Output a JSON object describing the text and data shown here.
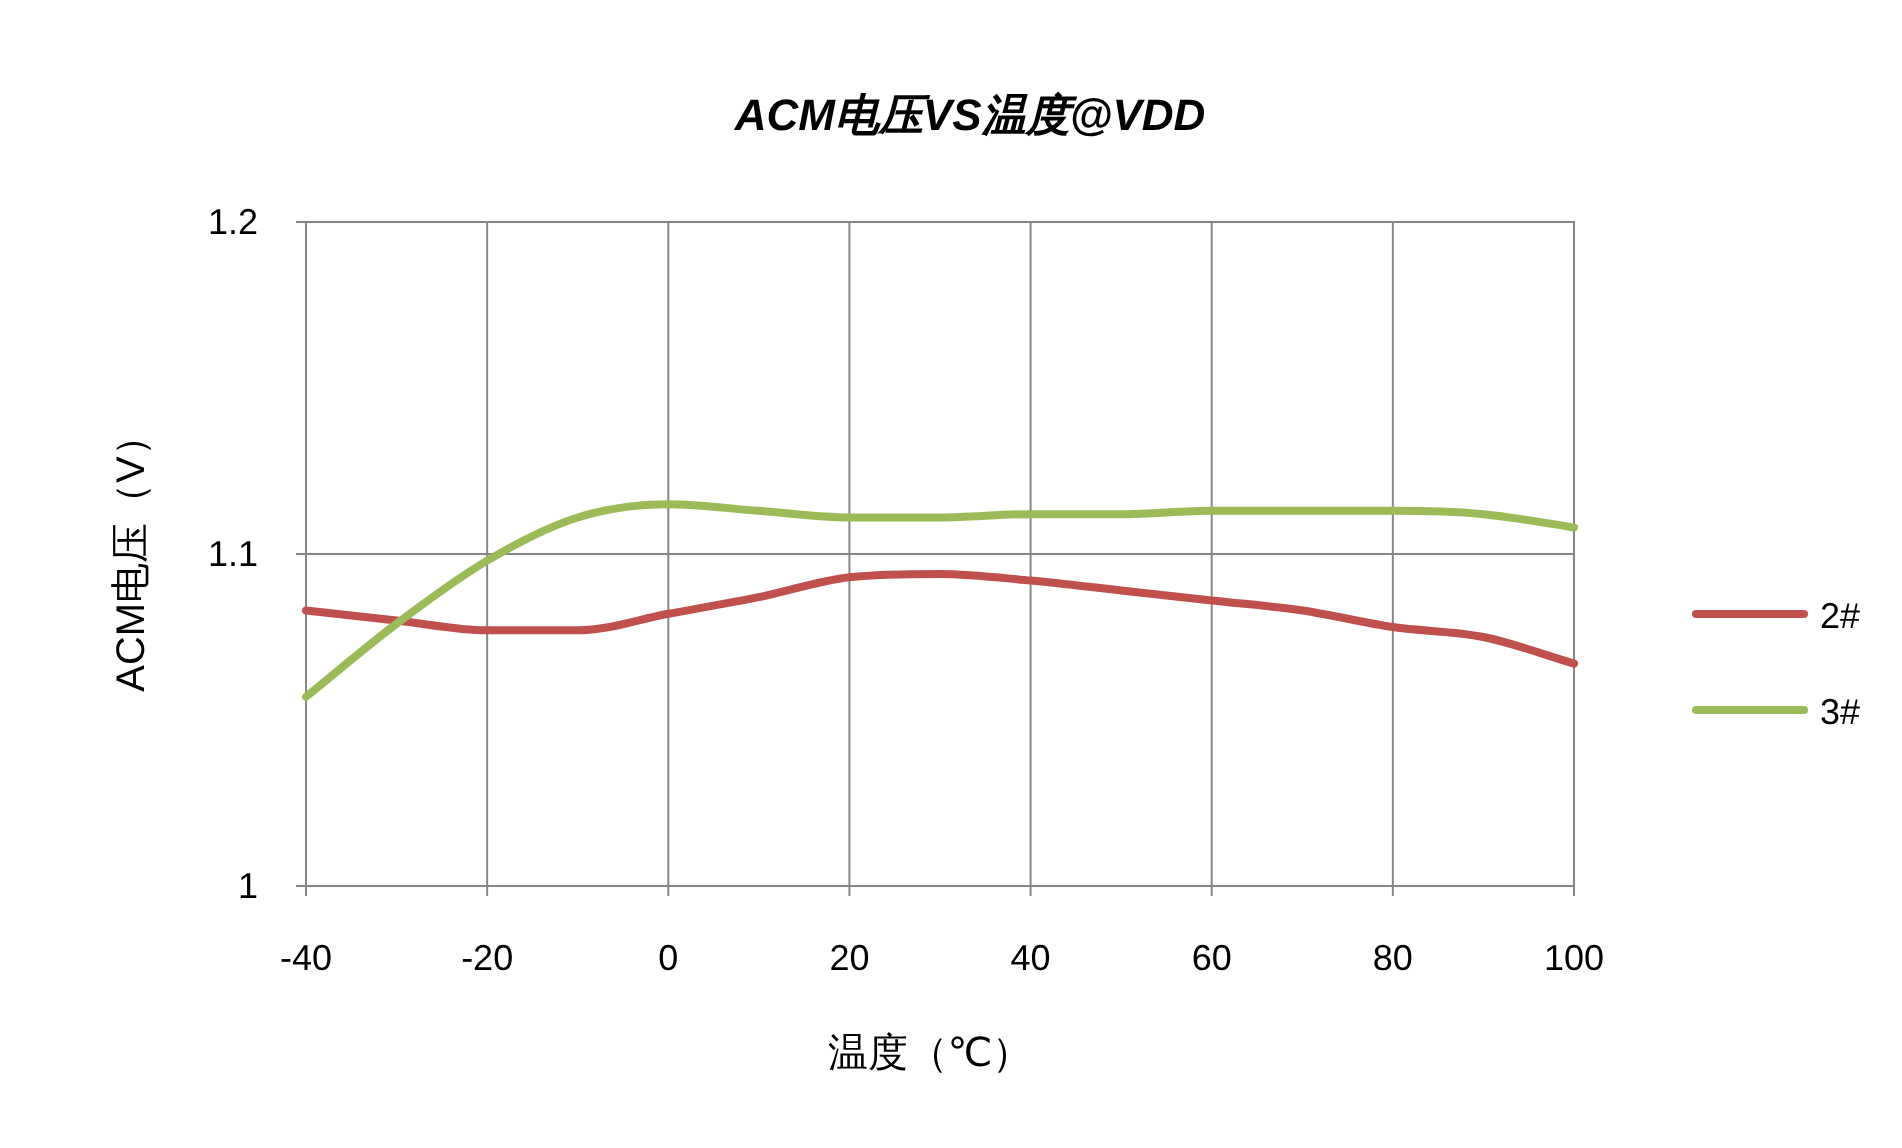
{
  "chart_data": {
    "type": "line",
    "title": "ACM电压VS温度@VDD",
    "xlabel": "温度（℃）",
    "ylabel": "ACM电压（V）",
    "x": [
      -40,
      -30,
      -20,
      -10,
      0,
      10,
      20,
      30,
      40,
      50,
      60,
      70,
      80,
      90,
      100
    ],
    "xlim": [
      -40,
      100
    ],
    "xticks": [
      -40,
      -20,
      0,
      20,
      40,
      60,
      80,
      100
    ],
    "ylim": [
      1,
      1.2
    ],
    "yticks": [
      1,
      1.1,
      1.2
    ],
    "grid": true,
    "legend": "right",
    "marker": "none",
    "line_style": "solid",
    "series": [
      {
        "name": "2#",
        "color": "#c0504d",
        "values": [
          1.083,
          1.08,
          1.077,
          1.077,
          1.082,
          1.087,
          1.093,
          1.094,
          1.092,
          1.089,
          1.086,
          1.083,
          1.078,
          1.075,
          1.067
        ]
      },
      {
        "name": "3#",
        "color": "#9bbb59",
        "values": [
          1.057,
          1.079,
          1.098,
          1.111,
          1.115,
          1.113,
          1.111,
          1.111,
          1.112,
          1.112,
          1.113,
          1.113,
          1.113,
          1.112,
          1.108
        ]
      }
    ]
  }
}
